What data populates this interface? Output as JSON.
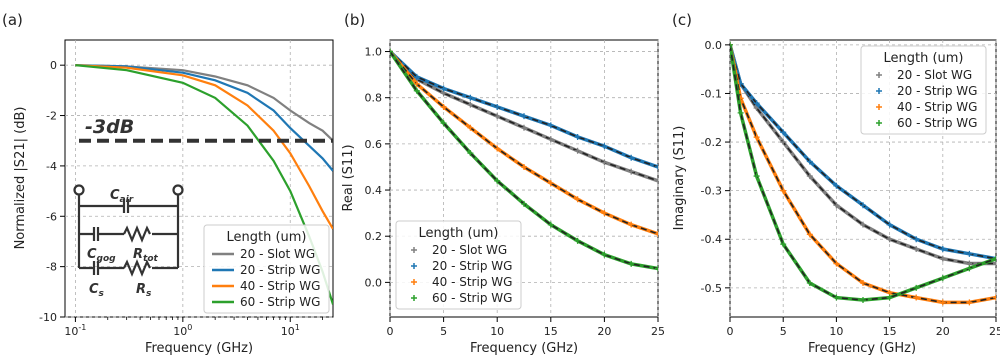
{
  "colors": {
    "Slot": "#808080",
    "Strip20": "#1f77b4",
    "Strip40": "#ff7f0e",
    "Strip60": "#2ca02c"
  },
  "chart_data": [
    {
      "type": "line",
      "panel": "(a)",
      "xlabel": "Frequency (GHz)",
      "ylabel": "Normalized |S21| (dB)",
      "xscale": "log",
      "xlim": [
        0.08,
        25
      ],
      "ylim": [
        -10,
        1
      ],
      "xticks": [
        "10^-1",
        "10^0",
        "10^1"
      ],
      "yticks": [
        0,
        -2,
        -4,
        -6,
        -8,
        -10
      ],
      "threshold_label": "-3dB",
      "threshold": -3,
      "legend_title": "Length (um)",
      "legend_position": "lower-right",
      "grid": true,
      "circuit_labels": {
        "c_air": "C_air",
        "c_gog": "C_gog",
        "r_tot": "R_tot",
        "c_s": "C_s",
        "r_s": "R_s"
      },
      "series": [
        {
          "name": "20 - Slot WG",
          "x": [
            0.1,
            0.3,
            1,
            2,
            4,
            7,
            10,
            15,
            20,
            25
          ],
          "y": [
            0,
            -0.05,
            -0.2,
            -0.45,
            -0.8,
            -1.3,
            -1.8,
            -2.3,
            -2.6,
            -3.0
          ]
        },
        {
          "name": "20 - Strip WG",
          "x": [
            0.1,
            0.3,
            1,
            2,
            4,
            7,
            10,
            15,
            20,
            25
          ],
          "y": [
            0,
            -0.05,
            -0.3,
            -0.6,
            -1.1,
            -1.8,
            -2.5,
            -3.2,
            -3.7,
            -4.2
          ]
        },
        {
          "name": "40 - Strip WG",
          "x": [
            0.1,
            0.3,
            1,
            2,
            4,
            7,
            10,
            15,
            20,
            25
          ],
          "y": [
            0,
            -0.1,
            -0.4,
            -0.8,
            -1.6,
            -2.6,
            -3.5,
            -4.8,
            -5.8,
            -6.5
          ]
        },
        {
          "name": "60 - Strip WG",
          "x": [
            0.1,
            0.3,
            1,
            2,
            4,
            7,
            10,
            15,
            20,
            25
          ],
          "y": [
            0,
            -0.2,
            -0.7,
            -1.3,
            -2.4,
            -3.8,
            -5.0,
            -6.8,
            -8.2,
            -9.5
          ]
        }
      ]
    },
    {
      "type": "scatter",
      "panel": "(b)",
      "xlabel": "Frequency (GHz)",
      "ylabel": "Real (S11)",
      "xlim": [
        0,
        25
      ],
      "ylim": [
        -0.15,
        1.05
      ],
      "xticks": [
        0,
        5,
        10,
        15,
        20,
        25
      ],
      "yticks": [
        0.0,
        0.2,
        0.4,
        0.6,
        0.8,
        1.0
      ],
      "legend_title": "Length (um)",
      "legend_position": "lower-left",
      "grid": true,
      "series": [
        {
          "name": "20 - Slot WG",
          "x": [
            0,
            2.5,
            5,
            7.5,
            10,
            12.5,
            15,
            17.5,
            20,
            22.5,
            25
          ],
          "y": [
            1.0,
            0.88,
            0.82,
            0.77,
            0.72,
            0.67,
            0.62,
            0.57,
            0.52,
            0.48,
            0.44
          ]
        },
        {
          "name": "20 - Strip WG",
          "x": [
            0,
            2.5,
            5,
            7.5,
            10,
            12.5,
            15,
            17.5,
            20,
            22.5,
            25
          ],
          "y": [
            1.0,
            0.89,
            0.84,
            0.8,
            0.76,
            0.72,
            0.68,
            0.63,
            0.59,
            0.54,
            0.5
          ]
        },
        {
          "name": "40 - Strip WG",
          "x": [
            0,
            2.5,
            5,
            7.5,
            10,
            12.5,
            15,
            17.5,
            20,
            22.5,
            25
          ],
          "y": [
            1.0,
            0.86,
            0.76,
            0.67,
            0.58,
            0.5,
            0.43,
            0.36,
            0.3,
            0.25,
            0.21
          ]
        },
        {
          "name": "60 - Strip WG",
          "x": [
            0,
            2.5,
            5,
            7.5,
            10,
            12.5,
            15,
            17.5,
            20,
            22.5,
            25
          ],
          "y": [
            1.0,
            0.83,
            0.69,
            0.56,
            0.44,
            0.34,
            0.25,
            0.18,
            0.12,
            0.08,
            0.06
          ]
        }
      ]
    },
    {
      "type": "scatter",
      "panel": "(c)",
      "xlabel": "Frequency (GHz)",
      "ylabel": "Imaginary (S11)",
      "xlim": [
        0,
        25
      ],
      "ylim": [
        -0.56,
        0.01
      ],
      "xticks": [
        0,
        5,
        10,
        15,
        20,
        25
      ],
      "yticks": [
        0.0,
        -0.1,
        -0.2,
        -0.3,
        -0.4,
        -0.5
      ],
      "legend_title": "Length (um)",
      "legend_position": "upper-right",
      "grid": true,
      "series": [
        {
          "name": "20 - Slot WG",
          "x": [
            0,
            1,
            2.5,
            5,
            7.5,
            10,
            12.5,
            15,
            17.5,
            20,
            22.5,
            25
          ],
          "y": [
            0,
            -0.08,
            -0.13,
            -0.2,
            -0.27,
            -0.33,
            -0.37,
            -0.4,
            -0.42,
            -0.44,
            -0.45,
            -0.45
          ]
        },
        {
          "name": "20 - Strip WG",
          "x": [
            0,
            1,
            2.5,
            5,
            7.5,
            10,
            12.5,
            15,
            17.5,
            20,
            22.5,
            25
          ],
          "y": [
            0,
            -0.08,
            -0.12,
            -0.18,
            -0.24,
            -0.29,
            -0.33,
            -0.37,
            -0.4,
            -0.42,
            -0.43,
            -0.44
          ]
        },
        {
          "name": "40 - Strip WG",
          "x": [
            0,
            1,
            2.5,
            5,
            7.5,
            10,
            12.5,
            15,
            17.5,
            20,
            22.5,
            25
          ],
          "y": [
            0,
            -0.11,
            -0.19,
            -0.3,
            -0.39,
            -0.45,
            -0.49,
            -0.51,
            -0.52,
            -0.53,
            -0.53,
            -0.52
          ]
        },
        {
          "name": "60 - Strip WG",
          "x": [
            0,
            1,
            2.5,
            5,
            7.5,
            10,
            12.5,
            15,
            17.5,
            20,
            22.5,
            25
          ],
          "y": [
            0,
            -0.14,
            -0.27,
            -0.41,
            -0.49,
            -0.52,
            -0.525,
            -0.52,
            -0.5,
            -0.48,
            -0.46,
            -0.44
          ]
        }
      ]
    }
  ]
}
